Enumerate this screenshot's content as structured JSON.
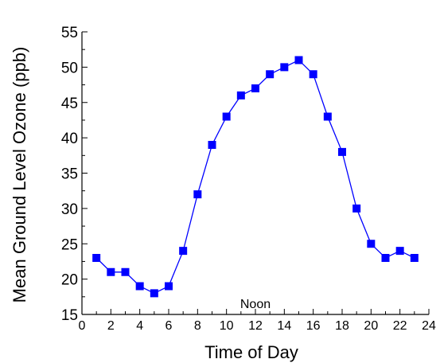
{
  "chart_data": {
    "type": "line",
    "title": "",
    "xlabel": "Time of Day",
    "ylabel": "Mean Ground Level Ozone (ppb)",
    "xlim": [
      0,
      24
    ],
    "ylim": [
      15,
      55
    ],
    "xticks": [
      0,
      2,
      4,
      6,
      8,
      10,
      12,
      14,
      16,
      18,
      20,
      22,
      24
    ],
    "yticks": [
      15,
      20,
      25,
      30,
      35,
      40,
      45,
      50,
      55
    ],
    "grid": false,
    "legend": "none",
    "series": [
      {
        "color": "#0000ff",
        "marker": "square",
        "x": [
          1,
          2,
          3,
          4,
          5,
          6,
          7,
          8,
          9,
          10,
          11,
          12,
          13,
          14,
          15,
          16,
          17,
          18,
          19,
          20,
          21,
          22,
          23
        ],
        "y": [
          23,
          21,
          21,
          19,
          18,
          19,
          24,
          32,
          39,
          43,
          46,
          47,
          49,
          50,
          51,
          49,
          43,
          38,
          30,
          25,
          23,
          24,
          23
        ]
      }
    ],
    "annotations": [
      {
        "text": "Noon",
        "x": 12,
        "y": 16.6
      }
    ]
  }
}
